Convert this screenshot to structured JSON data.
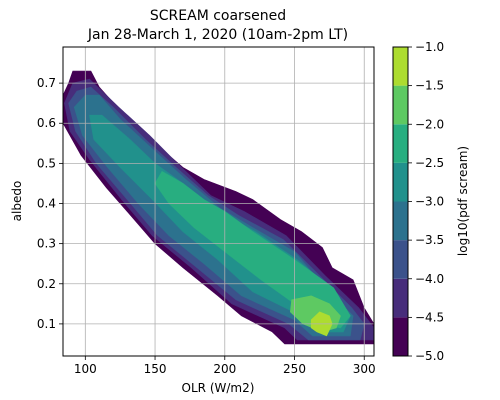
{
  "chart_data": {
    "type": "filled-contour",
    "title_line1": "SCREAM coarsened",
    "title_line2": "Jan 28-March 1, 2020 (10am-2pm LT)",
    "xlabel": "OLR (W/m2)",
    "ylabel": "albedo",
    "xlim": [
      84,
      307
    ],
    "ylim": [
      0.02,
      0.79
    ],
    "xticks": [
      100,
      150,
      200,
      250,
      300
    ],
    "yticks": [
      0.1,
      0.2,
      0.3,
      0.4,
      0.5,
      0.6,
      0.7
    ],
    "grid": true,
    "colorbar": {
      "label": "log10(pdf scream)",
      "levels": [
        -5.0,
        -4.5,
        -4.0,
        -3.5,
        -3.0,
        -2.5,
        -2.0,
        -1.5,
        -1.0
      ],
      "tick_labels": [
        "−5.0",
        "−4.5",
        "−4.0",
        "−3.5",
        "−3.0",
        "−2.5",
        "−2.0",
        "−1.5",
        "−1.0"
      ],
      "colors": [
        "#440154",
        "#472d7b",
        "#3b528b",
        "#2c728e",
        "#21918c",
        "#28ae80",
        "#5ec962",
        "#addc30"
      ]
    },
    "contours": [
      {
        "band": [
          -5.0,
          -4.5
        ],
        "polygon": [
          [
            84,
            0.67
          ],
          [
            88,
            0.7
          ],
          [
            91,
            0.73
          ],
          [
            104,
            0.73
          ],
          [
            110,
            0.69
          ],
          [
            128,
            0.62
          ],
          [
            150,
            0.55
          ],
          [
            170,
            0.49
          ],
          [
            185,
            0.46
          ],
          [
            208,
            0.43
          ],
          [
            220,
            0.41
          ],
          [
            240,
            0.36
          ],
          [
            255,
            0.33
          ],
          [
            270,
            0.29
          ],
          [
            277,
            0.24
          ],
          [
            292,
            0.21
          ],
          [
            300,
            0.14
          ],
          [
            307,
            0.1
          ],
          [
            307,
            0.05
          ],
          [
            243,
            0.05
          ],
          [
            234,
            0.08
          ],
          [
            212,
            0.12
          ],
          [
            195,
            0.17
          ],
          [
            170,
            0.24
          ],
          [
            150,
            0.3
          ],
          [
            130,
            0.38
          ],
          [
            115,
            0.44
          ],
          [
            97,
            0.52
          ],
          [
            84,
            0.6
          ]
        ]
      },
      {
        "band": [
          -4.5,
          -4.0
        ],
        "polygon": [
          [
            85,
            0.65
          ],
          [
            91,
            0.7
          ],
          [
            103,
            0.71
          ],
          [
            124,
            0.64
          ],
          [
            146,
            0.57
          ],
          [
            166,
            0.5
          ],
          [
            190,
            0.42
          ],
          [
            214,
            0.38
          ],
          [
            244,
            0.32
          ],
          [
            272,
            0.22
          ],
          [
            296,
            0.14
          ],
          [
            307,
            0.09
          ],
          [
            307,
            0.06
          ],
          [
            252,
            0.06
          ],
          [
            243,
            0.09
          ],
          [
            205,
            0.15
          ],
          [
            176,
            0.24
          ],
          [
            148,
            0.32
          ],
          [
            126,
            0.41
          ],
          [
            103,
            0.51
          ],
          [
            89,
            0.58
          ]
        ]
      },
      {
        "band": [
          -4.0,
          -3.5
        ],
        "polygon": [
          [
            88,
            0.65
          ],
          [
            94,
            0.68
          ],
          [
            104,
            0.69
          ],
          [
            120,
            0.64
          ],
          [
            143,
            0.56
          ],
          [
            165,
            0.49
          ],
          [
            188,
            0.42
          ],
          [
            210,
            0.37
          ],
          [
            242,
            0.31
          ],
          [
            268,
            0.22
          ],
          [
            291,
            0.14
          ],
          [
            300,
            0.1
          ],
          [
            297,
            0.06
          ],
          [
            260,
            0.06
          ],
          [
            246,
            0.1
          ],
          [
            208,
            0.16
          ],
          [
            180,
            0.24
          ],
          [
            152,
            0.32
          ],
          [
            130,
            0.41
          ],
          [
            108,
            0.5
          ],
          [
            93,
            0.58
          ]
        ]
      },
      {
        "band": [
          -3.5,
          -3.0
        ],
        "polygon": [
          [
            92,
            0.64
          ],
          [
            100,
            0.67
          ],
          [
            110,
            0.67
          ],
          [
            125,
            0.61
          ],
          [
            150,
            0.53
          ],
          [
            172,
            0.46
          ],
          [
            196,
            0.39
          ],
          [
            220,
            0.34
          ],
          [
            250,
            0.28
          ],
          [
            272,
            0.19
          ],
          [
            292,
            0.12
          ],
          [
            290,
            0.07
          ],
          [
            263,
            0.07
          ],
          [
            250,
            0.11
          ],
          [
            212,
            0.17
          ],
          [
            185,
            0.25
          ],
          [
            160,
            0.32
          ],
          [
            138,
            0.4
          ],
          [
            116,
            0.49
          ],
          [
            98,
            0.57
          ]
        ]
      },
      {
        "band": [
          -3.0,
          -2.5
        ],
        "polygon": [
          [
            103,
            0.62
          ],
          [
            112,
            0.62
          ],
          [
            132,
            0.56
          ],
          [
            150,
            0.5
          ],
          [
            170,
            0.45
          ],
          [
            196,
            0.38
          ],
          [
            222,
            0.33
          ],
          [
            252,
            0.26
          ],
          [
            276,
            0.19
          ],
          [
            290,
            0.12
          ],
          [
            285,
            0.08
          ],
          [
            268,
            0.08
          ],
          [
            255,
            0.12
          ],
          [
            220,
            0.18
          ],
          [
            195,
            0.26
          ],
          [
            170,
            0.33
          ],
          [
            148,
            0.41
          ],
          [
            125,
            0.49
          ],
          [
            106,
            0.56
          ]
        ]
      },
      {
        "band": [
          -2.5,
          -2.0
        ],
        "polygon": [
          [
            155,
            0.48
          ],
          [
            170,
            0.45
          ],
          [
            185,
            0.41
          ],
          [
            200,
            0.38
          ],
          [
            220,
            0.33
          ],
          [
            250,
            0.26
          ],
          [
            278,
            0.19
          ],
          [
            290,
            0.12
          ],
          [
            283,
            0.09
          ],
          [
            270,
            0.1
          ],
          [
            250,
            0.15
          ],
          [
            226,
            0.21
          ],
          [
            200,
            0.28
          ],
          [
            178,
            0.34
          ],
          [
            160,
            0.4
          ],
          [
            150,
            0.45
          ]
        ]
      },
      {
        "band": [
          -2.0,
          -1.5
        ],
        "polygon": [
          [
            248,
            0.16
          ],
          [
            262,
            0.17
          ],
          [
            275,
            0.15
          ],
          [
            283,
            0.12
          ],
          [
            280,
            0.09
          ],
          [
            270,
            0.08
          ],
          [
            256,
            0.1
          ],
          [
            247,
            0.13
          ]
        ]
      },
      {
        "band": [
          -1.5,
          -1.0
        ],
        "polygon": [
          [
            262,
            0.11
          ],
          [
            268,
            0.13
          ],
          [
            275,
            0.12
          ],
          [
            277,
            0.1
          ],
          [
            273,
            0.07
          ],
          [
            266,
            0.08
          ],
          [
            262,
            0.09
          ]
        ]
      }
    ]
  }
}
